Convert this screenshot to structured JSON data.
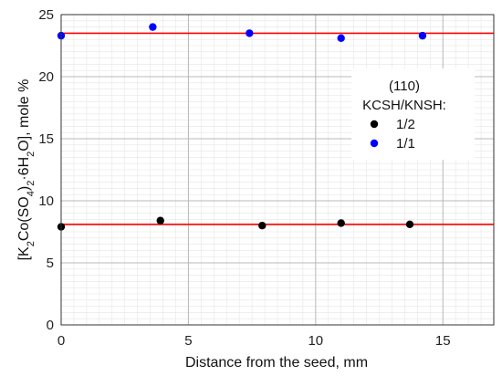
{
  "chart_data": {
    "type": "scatter",
    "xlabel": "Distance from the seed, mm",
    "ylabel": {
      "a": "[K",
      "b": "2",
      "c": "Co(SO",
      "d": "4",
      "e": ")",
      "f": "2",
      "g": "·6H",
      "h": "2",
      "i": "O], mole %"
    },
    "xlim": [
      0,
      17
    ],
    "ylim": [
      0,
      25
    ],
    "xticks": [
      "0",
      "5",
      "10",
      "15"
    ],
    "yticks": [
      "0",
      "5",
      "10",
      "15",
      "20",
      "25"
    ],
    "xtick_values": [
      0,
      5,
      10,
      15
    ],
    "ytick_values": [
      0,
      5,
      10,
      15,
      20,
      25
    ],
    "grid": true,
    "legend": {
      "title_line1": "(110)",
      "title_line2": "KCSH/KNSH:",
      "placement": "right"
    },
    "series": [
      {
        "name": "1/2",
        "color": "#000000",
        "x": [
          0.0,
          3.9,
          7.9,
          11.0,
          13.7
        ],
        "y": [
          7.9,
          8.4,
          8.0,
          8.2,
          8.1
        ]
      },
      {
        "name": "1/1",
        "color": "#0000ff",
        "x": [
          0.0,
          3.6,
          7.4,
          11.0,
          14.2
        ],
        "y": [
          23.3,
          24.0,
          23.5,
          23.1,
          23.3
        ]
      }
    ],
    "reference_lines": [
      {
        "y": 8.1,
        "color": "#ff0000"
      },
      {
        "y": 23.5,
        "color": "#ff0000"
      }
    ]
  }
}
